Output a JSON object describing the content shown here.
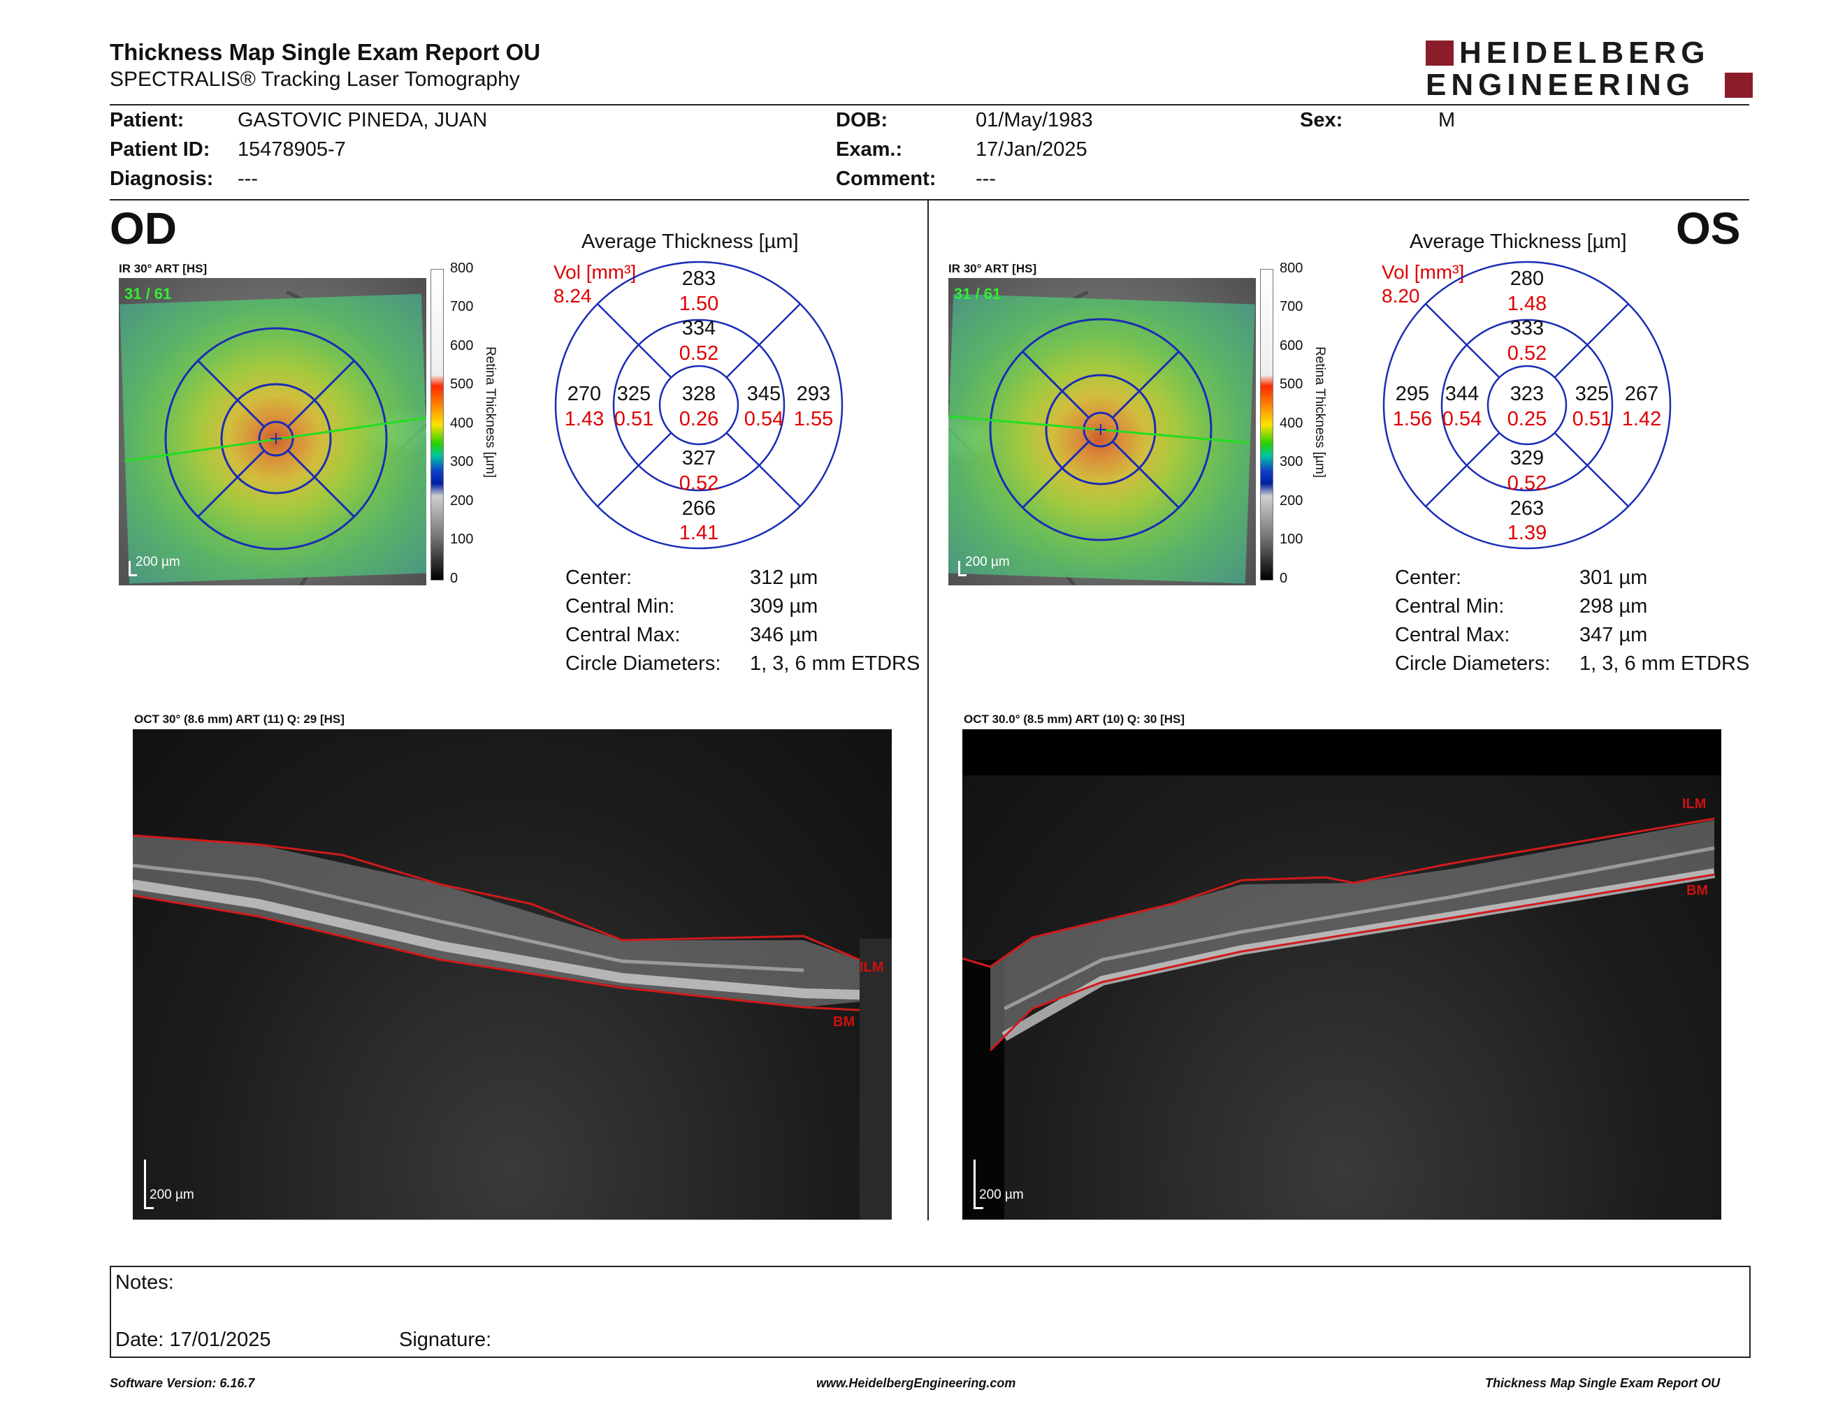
{
  "header": {
    "title": "Thickness Map Single Exam Report OU",
    "subtitle": "SPECTRALIS® Tracking Laser Tomography",
    "logo_line1": "HEIDELBERG",
    "logo_line2": "ENGINEERING"
  },
  "patient": {
    "name_label": "Patient:",
    "name": "GASTOVIC PINEDA, JUAN",
    "id_label": "Patient ID:",
    "id": "15478905-7",
    "diagnosis_label": "Diagnosis:",
    "diagnosis": "---",
    "dob_label": "DOB:",
    "dob": "01/May/1983",
    "exam_label": "Exam.:",
    "exam": "17/Jan/2025",
    "comment_label": "Comment:",
    "comment": "---",
    "sex_label": "Sex:",
    "sex": "M"
  },
  "colors": {
    "accent": "#8b1c2a",
    "etdrs_line": "#1a2db5",
    "volume_red": "#e00000",
    "segmentation": "#d11a1a",
    "scan_line": "#22dd22"
  },
  "colorbar": {
    "ticks": [
      "800",
      "700",
      "600",
      "500",
      "400",
      "300",
      "200",
      "100",
      "0"
    ],
    "label": "Retina  Thickness [µm]"
  },
  "od": {
    "eye": "OD",
    "ir_label": "IR 30° ART [HS]",
    "ir_overlay": "31 / 61",
    "scale": "200 µm",
    "avg_title": "Average Thickness [µm]",
    "vol_label": "Vol [mm³]",
    "vol_total": "8.24",
    "etdrs": {
      "center": {
        "thick": "328",
        "vol": "0.26"
      },
      "inner_sup": {
        "thick": "334",
        "vol": "0.52"
      },
      "inner_inf": {
        "thick": "327",
        "vol": "0.52"
      },
      "inner_left": {
        "thick": "325",
        "vol": "0.51"
      },
      "inner_right": {
        "thick": "345",
        "vol": "0.54"
      },
      "outer_sup": {
        "thick": "283",
        "vol": "1.50"
      },
      "outer_inf": {
        "thick": "266",
        "vol": "1.41"
      },
      "outer_left": {
        "thick": "270",
        "vol": "1.43"
      },
      "outer_right": {
        "thick": "293",
        "vol": "1.55"
      }
    },
    "stats": {
      "center_label": "Center:",
      "center": "312 µm",
      "min_label": "Central Min:",
      "min": "309 µm",
      "max_label": "Central Max:",
      "max": "346 µm",
      "diam_label": "Circle Diameters:",
      "diam": "1, 3, 6 mm ETDRS"
    },
    "oct_label": "OCT 30° (8.6 mm) ART (11) Q: 29 [HS]",
    "oct_scale": "200 µm",
    "ilm": "ILM",
    "bm": "BM"
  },
  "os": {
    "eye": "OS",
    "ir_label": "IR 30° ART [HS]",
    "ir_overlay": "31 / 61",
    "scale": "200 µm",
    "avg_title": "Average Thickness [µm]",
    "vol_label": "Vol [mm³]",
    "vol_total": "8.20",
    "etdrs": {
      "center": {
        "thick": "323",
        "vol": "0.25"
      },
      "inner_sup": {
        "thick": "333",
        "vol": "0.52"
      },
      "inner_inf": {
        "thick": "329",
        "vol": "0.52"
      },
      "inner_left": {
        "thick": "344",
        "vol": "0.54"
      },
      "inner_right": {
        "thick": "325",
        "vol": "0.51"
      },
      "outer_sup": {
        "thick": "280",
        "vol": "1.48"
      },
      "outer_inf": {
        "thick": "263",
        "vol": "1.39"
      },
      "outer_left": {
        "thick": "295",
        "vol": "1.56"
      },
      "outer_right": {
        "thick": "267",
        "vol": "1.42"
      }
    },
    "stats": {
      "center_label": "Center:",
      "center": "301 µm",
      "min_label": "Central Min:",
      "min": "298 µm",
      "max_label": "Central Max:",
      "max": "347 µm",
      "diam_label": "Circle Diameters:",
      "diam": "1, 3, 6 mm ETDRS"
    },
    "oct_label": "OCT 30.0° (8.5 mm) ART (10) Q: 30 [HS]",
    "oct_scale": "200 µm",
    "ilm": "ILM",
    "bm": "BM"
  },
  "notes": {
    "notes_label": "Notes:",
    "date_label": "Date: 17/01/2025",
    "signature_label": "Signature:"
  },
  "footer": {
    "software": "Software Version: 6.16.7",
    "website": "www.HeidelbergEngineering.com",
    "report": "Thickness Map Single Exam Report OU"
  }
}
